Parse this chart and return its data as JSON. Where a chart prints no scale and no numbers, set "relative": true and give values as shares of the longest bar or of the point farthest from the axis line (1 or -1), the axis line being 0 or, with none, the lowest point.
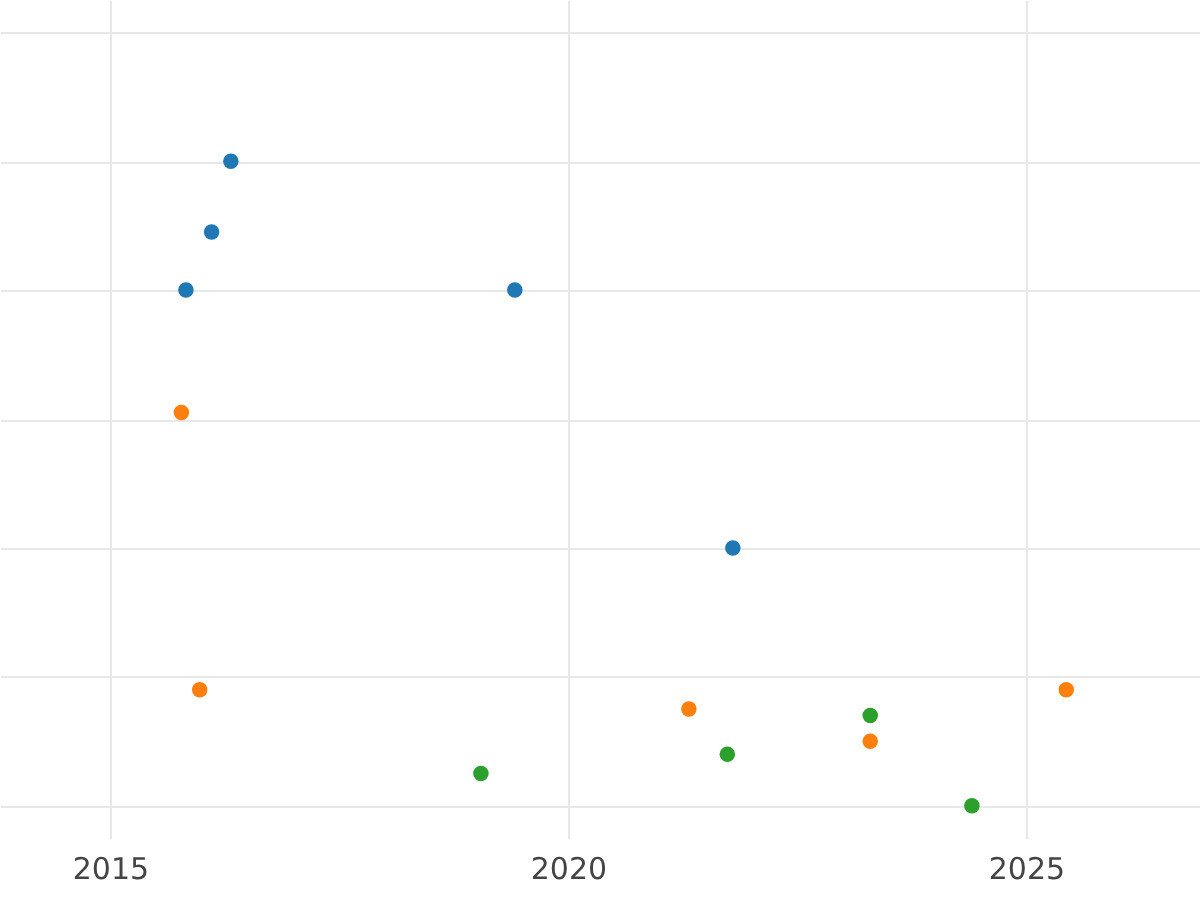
{
  "chart_data": {
    "type": "scatter",
    "relative": true,
    "xlim": [
      2013.8,
      2026.9
    ],
    "xticks": [
      2015,
      2020,
      2025
    ],
    "grid": true,
    "marker": "circle",
    "legend": false,
    "series": [
      {
        "color": "#1f77b4",
        "x": [
          2016.32,
          2016.11,
          2015.83,
          2019.42,
          2021.8
        ],
        "values": [
          1.0,
          0.89,
          0.8,
          0.8,
          0.4
        ]
      },
      {
        "color": "#ff7f0e",
        "x": [
          2015.78,
          2015.98,
          2021.32,
          2023.3,
          2025.44
        ],
        "values": [
          0.61,
          0.18,
          0.15,
          0.1,
          0.18
        ]
      },
      {
        "color": "#2ca02c",
        "x": [
          2019.05,
          2021.74,
          2023.3,
          2024.41
        ],
        "values": [
          0.05,
          0.08,
          0.14,
          0.0
        ]
      }
    ]
  }
}
